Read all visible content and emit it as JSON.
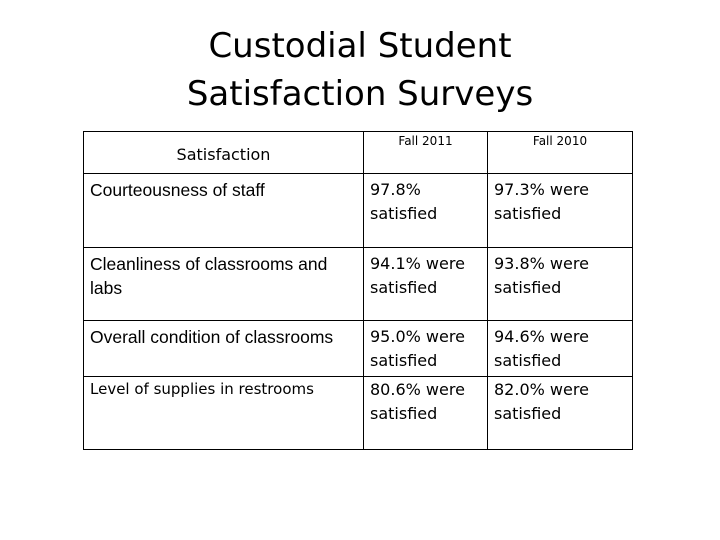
{
  "title": {
    "line1": "Custodial Student",
    "line2": "Satisfaction Surveys"
  },
  "table": {
    "headers": {
      "category": "Satisfaction",
      "col1": "Fall 2011",
      "col2": "Fall 2010"
    },
    "rows": [
      {
        "category": "Courteousness of staff",
        "fall_2011": "97.8% satisfied",
        "fall_2010": "97.3% were satisfied"
      },
      {
        "category": "Cleanliness of classrooms and labs",
        "fall_2011": "94.1% were satisfied",
        "fall_2010": "93.8% were satisfied"
      },
      {
        "category": "Overall condition of classrooms",
        "fall_2011": "95.0% were satisfied",
        "fall_2010": "94.6% were satisfied"
      },
      {
        "category": "Level of supplies in restrooms",
        "fall_2011": "80.6% were satisfied",
        "fall_2010": "82.0% were satisfied"
      }
    ]
  }
}
